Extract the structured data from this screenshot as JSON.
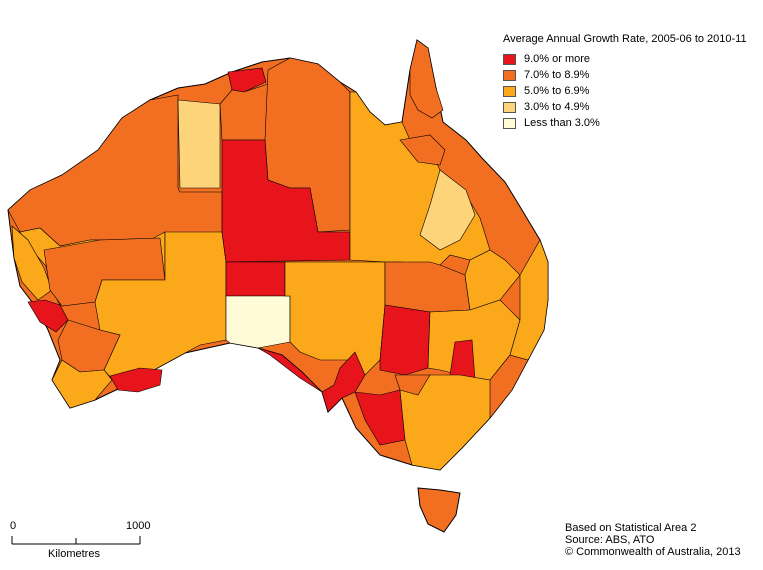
{
  "legend": {
    "title": "Average Annual Growth Rate, 2005-06 to 2010-11",
    "classes": [
      {
        "label": "9.0% or more",
        "color": "#e8141c"
      },
      {
        "label": "7.0% to 8.9%",
        "color": "#f26f22"
      },
      {
        "label": "5.0% to 6.9%",
        "color": "#fba81b"
      },
      {
        "label": "3.0% to 4.9%",
        "color": "#fdd47a"
      },
      {
        "label": "Less than 3.0%",
        "color": "#fffbd6"
      }
    ]
  },
  "scale_bar": {
    "min_label": "0",
    "max_label": "1000",
    "units": "Kilometres"
  },
  "credits": {
    "line1": "Based on Statistical Area 2",
    "line2": "Source: ABS, ATO",
    "line3": "© Commonwealth of Australia, 2013"
  }
}
